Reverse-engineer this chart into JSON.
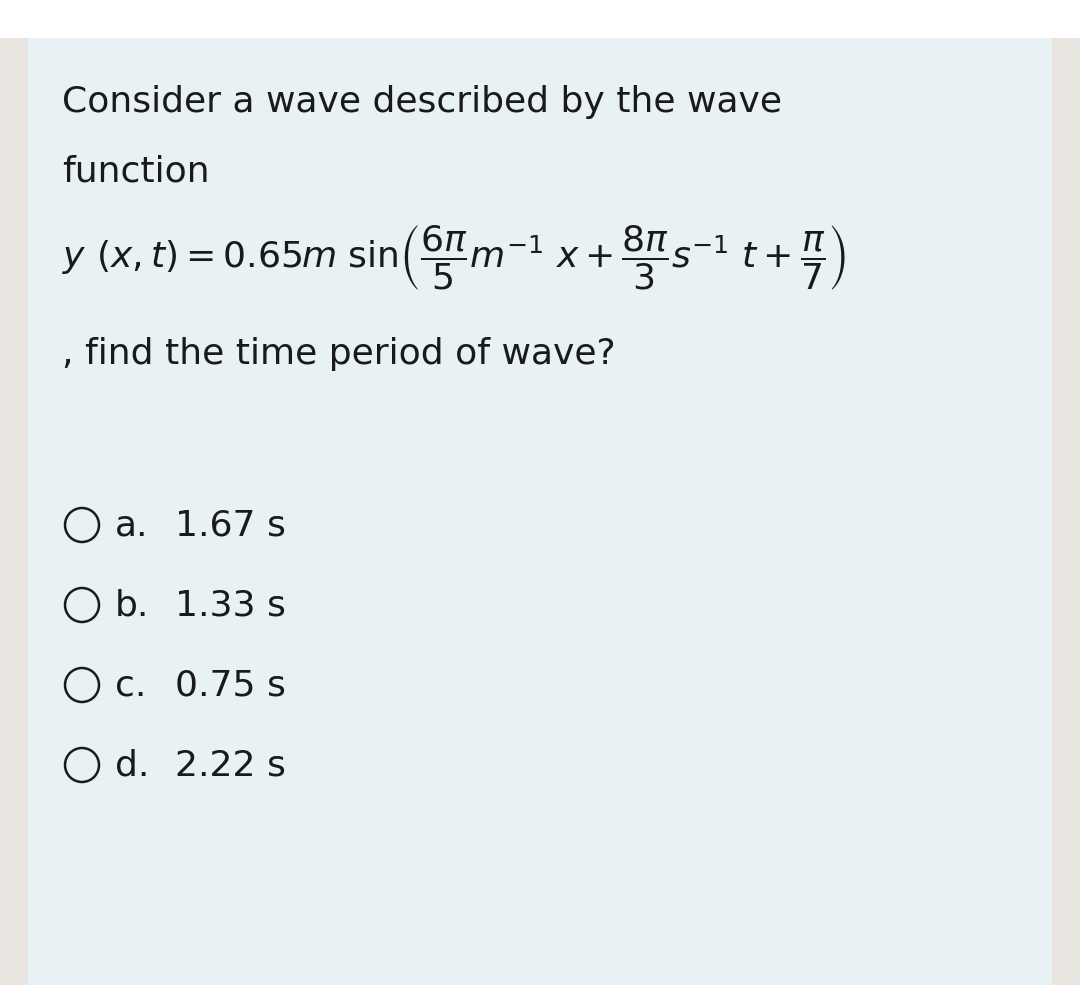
{
  "bg_outer": "#e8e4e0",
  "bg_top": "#ffffff",
  "bg_inner": "#e8f2f5",
  "text_color": "#1a1a1a",
  "circle_color": "#1a1a1a",
  "title_line1": "Consider a wave described by the wave",
  "title_line2": "function",
  "find_text": ", find the time period of wave?",
  "options": [
    {
      "label": "a.",
      "value": "1.67 s"
    },
    {
      "label": "b.",
      "value": "1.33 s"
    },
    {
      "label": "c.",
      "value": "0.75 s"
    },
    {
      "label": "d.",
      "value": "2.22 s"
    }
  ],
  "font_size_title": 26,
  "font_size_formula": 26,
  "font_size_options": 26,
  "fig_width": 10.8,
  "fig_height": 9.85,
  "dpi": 100
}
